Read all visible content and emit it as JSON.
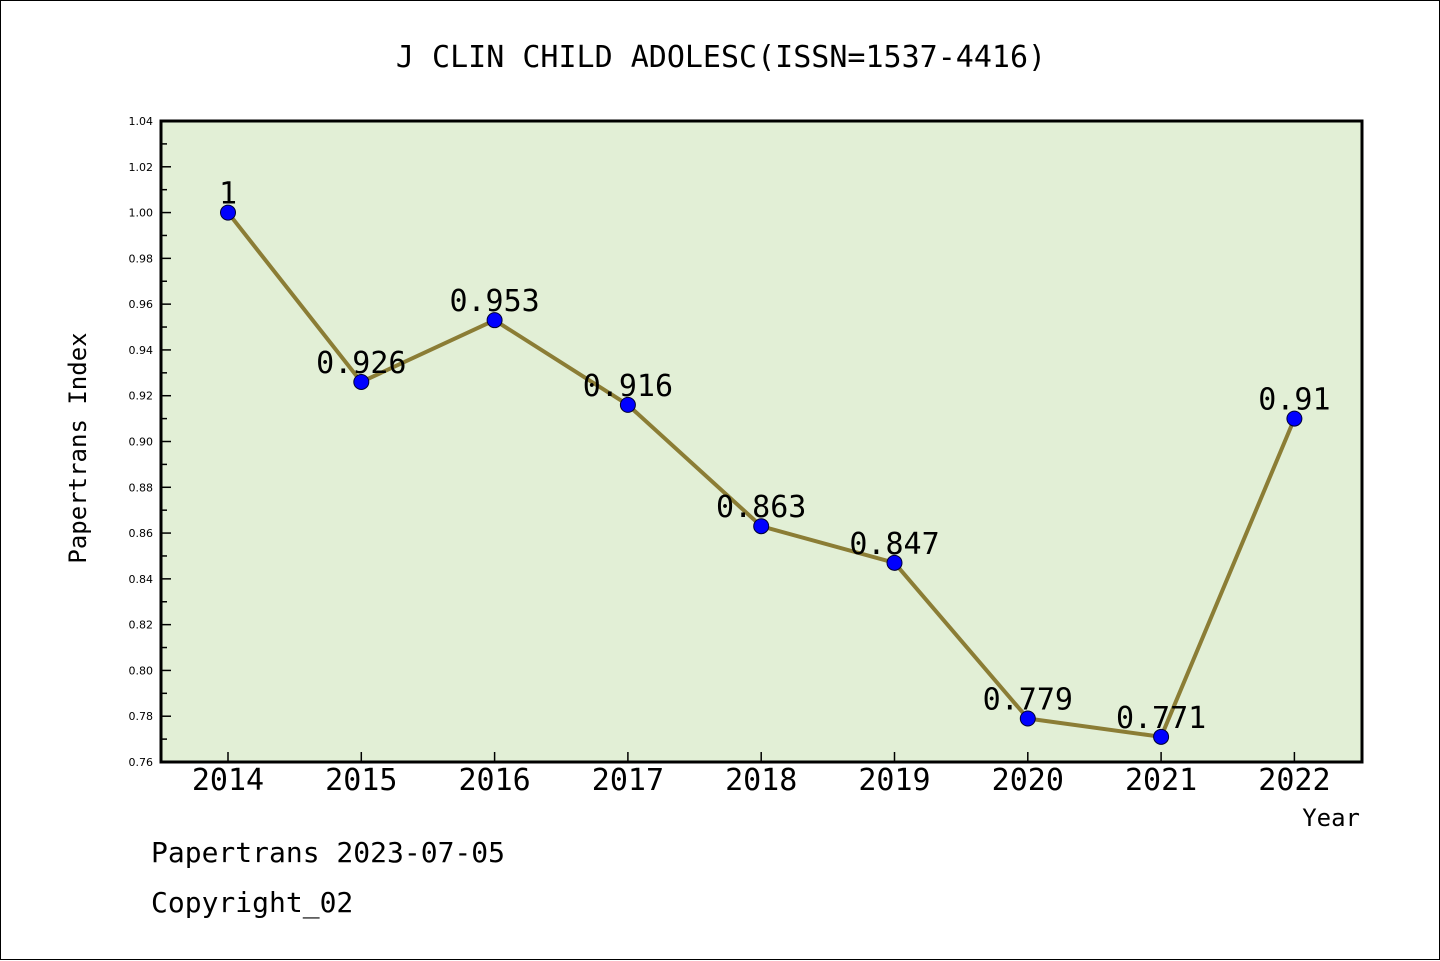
{
  "chart_data": {
    "type": "line",
    "title": "J CLIN CHILD ADOLESC(ISSN=1537-4416)",
    "xlabel": "Year",
    "ylabel": "Papertrans Index",
    "categories": [
      "2014",
      "2015",
      "2016",
      "2017",
      "2018",
      "2019",
      "2020",
      "2021",
      "2022"
    ],
    "series": [
      {
        "values": [
          1,
          0.926,
          0.953,
          0.916,
          0.863,
          0.847,
          0.779,
          0.771,
          0.91
        ],
        "data_labels": [
          "1",
          "0.926",
          "0.953",
          "0.916",
          "0.863",
          "0.847",
          "0.779",
          "0.771",
          "0.91"
        ]
      }
    ],
    "ylim": [
      0.76,
      1.04
    ],
    "y_ticks": [
      "0.76",
      "0.78",
      "0.80",
      "0.82",
      "0.84",
      "0.86",
      "0.88",
      "0.90",
      "0.92",
      "0.94",
      "0.96",
      "0.98",
      "1.00",
      "1.02",
      "1.04"
    ],
    "grid": false,
    "colors": {
      "plot_background": "#e2efd6",
      "line": "#8b7d35",
      "marker": "#0000ff"
    }
  },
  "footer": {
    "line1": "Papertrans 2023-07-05",
    "line2": "Copyright_02"
  }
}
